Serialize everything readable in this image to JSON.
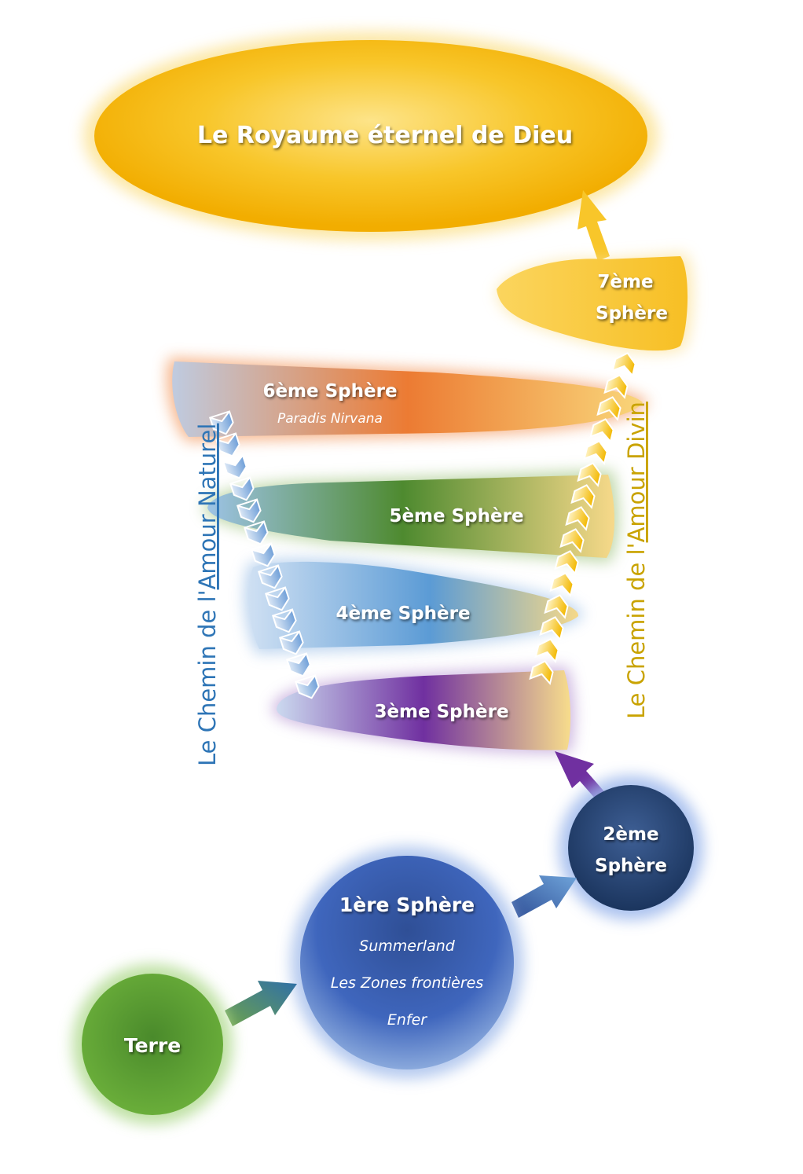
{
  "kingdom": {
    "label": "Le Royaume éternel de Dieu"
  },
  "spheres": {
    "s7": {
      "line1": "7ème",
      "line2": "Sphère"
    },
    "s6": {
      "label": "6ème Sphère",
      "sub": "Paradis Nirvana"
    },
    "s5": {
      "label": "5ème Sphère"
    },
    "s4": {
      "label": "4ème Sphère"
    },
    "s3": {
      "label": "3ème Sphère"
    },
    "s2": {
      "line1": "2ème",
      "line2": "Sphère"
    },
    "s1": {
      "label": "1ère Sphère",
      "sub1": "Summerland",
      "sub2": "Les Zones frontières",
      "sub3": "Enfer"
    }
  },
  "earth": {
    "label": "Terre"
  },
  "paths": {
    "natural": {
      "prefix": "Le Chemin de l'",
      "underlined": "Amour Naturel",
      "color": "#2e75b6"
    },
    "divine": {
      "prefix": "Le Chemin  de l'",
      "underlined": "Amour Divin",
      "color": "#c9a300"
    }
  },
  "colors": {
    "gold": "#f5b800",
    "orange": "#ec7b33",
    "green": "#4e8a2f",
    "blue": "#5b9bd5",
    "purple": "#7030a0",
    "navy": "#1f3864",
    "royal": "#3a5eae",
    "earth": "#57a033"
  }
}
